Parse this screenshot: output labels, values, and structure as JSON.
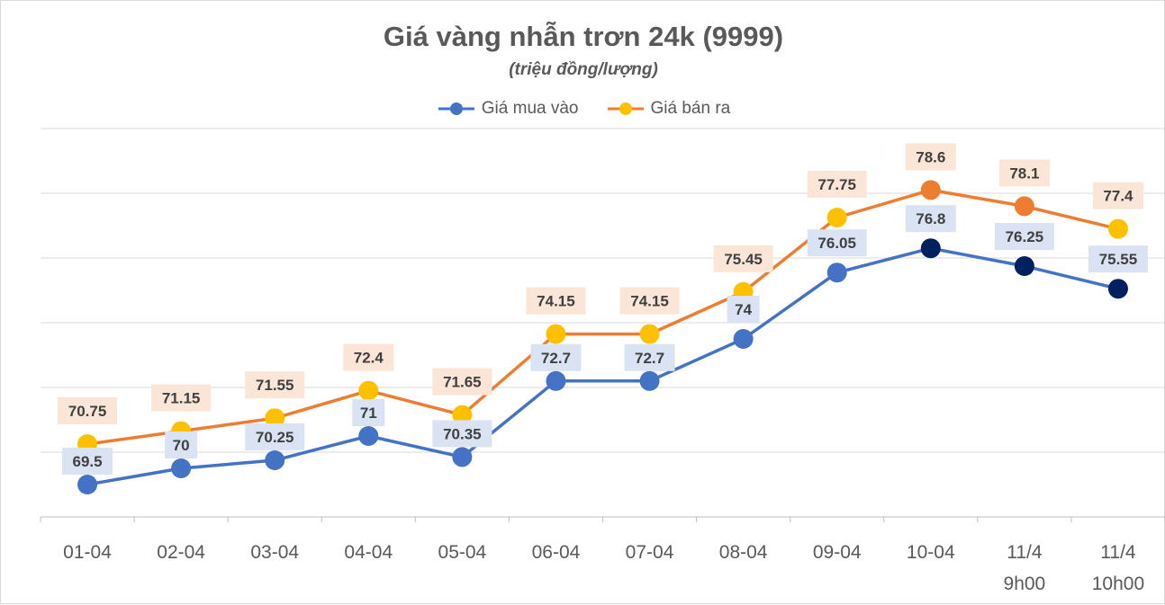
{
  "chart_data": {
    "type": "line",
    "title": "Giá vàng nhẫn trơn 24k (9999)",
    "subtitle": "(triệu đồng/lượng)",
    "categories": [
      [
        "01-04"
      ],
      [
        "02-04"
      ],
      [
        "03-04"
      ],
      [
        "04-04"
      ],
      [
        "05-04"
      ],
      [
        "06-04"
      ],
      [
        "07-04"
      ],
      [
        "08-04"
      ],
      [
        "09-04"
      ],
      [
        "10-04"
      ],
      [
        "11/4",
        "9h00"
      ],
      [
        "11/4",
        "10h00"
      ]
    ],
    "series": [
      {
        "name": "Giá mua vào",
        "line_color": "#4472c4",
        "marker_color": "#4472c4",
        "label_bg": "#dae3f3",
        "values": [
          69.5,
          70,
          70.25,
          71,
          70.35,
          72.7,
          72.7,
          74,
          76.05,
          76.8,
          76.25,
          75.55
        ],
        "marker_colors": [
          "#4472c4",
          "#4472c4",
          "#4472c4",
          "#4472c4",
          "#4472c4",
          "#4472c4",
          "#4472c4",
          "#4472c4",
          "#4472c4",
          "#002060",
          "#002060",
          "#002060"
        ]
      },
      {
        "name": "Giá bán ra",
        "line_color": "#ed7d31",
        "marker_color": "#ffc000",
        "label_bg": "#fbe5d6",
        "values": [
          70.75,
          71.15,
          71.55,
          72.4,
          71.65,
          74.15,
          74.15,
          75.45,
          77.75,
          78.6,
          78.1,
          77.4
        ],
        "marker_colors": [
          "#ffc000",
          "#ffc000",
          "#ffc000",
          "#ffc000",
          "#ffc000",
          "#ffc000",
          "#ffc000",
          "#ffc000",
          "#ffc000",
          "#ed7d31",
          "#ed7d31",
          "#ffc000"
        ]
      }
    ],
    "ylim": [
      68.5,
      80.5
    ],
    "grid": true,
    "legend_position": "top-center",
    "value_axis_labels_visible": false
  }
}
